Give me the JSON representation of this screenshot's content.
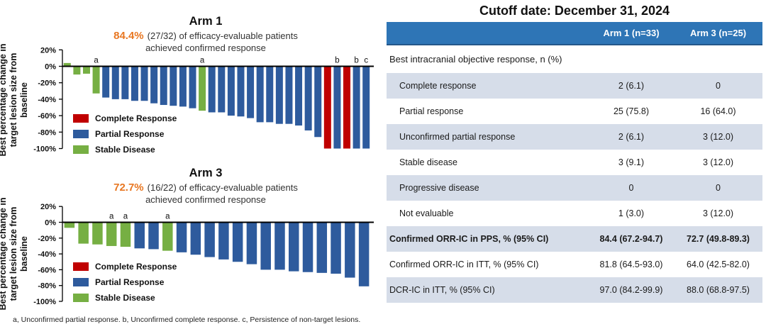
{
  "colors": {
    "cr": "#C00000",
    "pr": "#2E5B9D",
    "sd": "#76AF43",
    "accent_orange": "#E87722",
    "table_header_bg": "#2E75B6",
    "table_row_light": "#D6DDE9",
    "table_row_white": "#FFFFFF"
  },
  "footnote": "a, Unconfirmed partial response. b, Unconfirmed complete response. c, Persistence of non-target lesions.",
  "chart_data": [
    {
      "type": "bar",
      "variant": "waterfall",
      "title": "Arm 1",
      "headline_pct": "84.4%",
      "subtitle_line1": "(27/32) of efficacy-evaluable patients",
      "subtitle_line2": "achieved confirmed response",
      "ylabel_lines": [
        "Best percentage change in",
        "target lesion size from",
        "baseline"
      ],
      "ylabel": "Best percentage change in target lesion size from baseline",
      "ylim": [
        -100,
        20
      ],
      "grid": false,
      "ytick_values": [
        20,
        0,
        -20,
        -40,
        -60,
        -80,
        -100
      ],
      "ytick_labels": [
        "20%",
        "0%",
        "-20%",
        "-40%",
        "-60%",
        "-80%",
        "-100%"
      ],
      "legend_position": "inside-left",
      "legend": [
        {
          "label": "Complete Response",
          "color_key": "cr"
        },
        {
          "label": "Partial Response",
          "color_key": "pr"
        },
        {
          "label": "Stable Disease",
          "color_key": "sd"
        }
      ],
      "bars": [
        {
          "value": 4,
          "color_key": "sd"
        },
        {
          "value": -10,
          "color_key": "sd"
        },
        {
          "value": -9,
          "color_key": "sd"
        },
        {
          "value": -33,
          "color_key": "sd",
          "note": "a"
        },
        {
          "value": -38,
          "color_key": "pr"
        },
        {
          "value": -40,
          "color_key": "pr"
        },
        {
          "value": -40,
          "color_key": "pr"
        },
        {
          "value": -42,
          "color_key": "pr"
        },
        {
          "value": -42,
          "color_key": "pr"
        },
        {
          "value": -45,
          "color_key": "pr"
        },
        {
          "value": -47,
          "color_key": "pr"
        },
        {
          "value": -48,
          "color_key": "pr"
        },
        {
          "value": -49,
          "color_key": "pr"
        },
        {
          "value": -51,
          "color_key": "pr"
        },
        {
          "value": -54,
          "color_key": "sd",
          "note": "a"
        },
        {
          "value": -56,
          "color_key": "pr"
        },
        {
          "value": -56,
          "color_key": "pr"
        },
        {
          "value": -60,
          "color_key": "pr"
        },
        {
          "value": -61,
          "color_key": "pr"
        },
        {
          "value": -63,
          "color_key": "pr"
        },
        {
          "value": -68,
          "color_key": "pr"
        },
        {
          "value": -68,
          "color_key": "pr"
        },
        {
          "value": -70,
          "color_key": "pr"
        },
        {
          "value": -70,
          "color_key": "pr"
        },
        {
          "value": -72,
          "color_key": "pr"
        },
        {
          "value": -78,
          "color_key": "pr"
        },
        {
          "value": -86,
          "color_key": "pr"
        },
        {
          "value": -100,
          "color_key": "cr"
        },
        {
          "value": -100,
          "color_key": "pr",
          "note": "b"
        },
        {
          "value": -100,
          "color_key": "cr"
        },
        {
          "value": -100,
          "color_key": "pr",
          "note": "b"
        },
        {
          "value": -100,
          "color_key": "pr",
          "note": "c"
        }
      ]
    },
    {
      "type": "bar",
      "variant": "waterfall",
      "title": "Arm 3",
      "headline_pct": "72.7%",
      "subtitle_line1": "(16/22) of efficacy-evaluable patients",
      "subtitle_line2": "achieved confirmed response",
      "ylabel_lines": [
        "Best percentage change in",
        "target lesion size from",
        "baseline"
      ],
      "ylabel": "Best percentage change in target lesion size from baseline",
      "ylim": [
        -100,
        20
      ],
      "grid": false,
      "ytick_values": [
        20,
        0,
        -20,
        -40,
        -60,
        -80,
        -100
      ],
      "ytick_labels": [
        "20%",
        "0%",
        "-20%",
        "-40%",
        "-60%",
        "-80%",
        "-100%"
      ],
      "legend_position": "inside-left",
      "legend": [
        {
          "label": "Complete Response",
          "color_key": "cr"
        },
        {
          "label": "Partial Response",
          "color_key": "pr"
        },
        {
          "label": "Stable Disease",
          "color_key": "sd"
        }
      ],
      "bars": [
        {
          "value": -7,
          "color_key": "sd"
        },
        {
          "value": -27,
          "color_key": "sd"
        },
        {
          "value": -28,
          "color_key": "sd"
        },
        {
          "value": -30,
          "color_key": "sd",
          "note": "a"
        },
        {
          "value": -31,
          "color_key": "sd",
          "note": "a"
        },
        {
          "value": -33,
          "color_key": "pr"
        },
        {
          "value": -34,
          "color_key": "pr"
        },
        {
          "value": -36,
          "color_key": "sd",
          "note": "a"
        },
        {
          "value": -38,
          "color_key": "pr"
        },
        {
          "value": -41,
          "color_key": "pr"
        },
        {
          "value": -44,
          "color_key": "pr"
        },
        {
          "value": -47,
          "color_key": "pr"
        },
        {
          "value": -50,
          "color_key": "pr"
        },
        {
          "value": -53,
          "color_key": "pr"
        },
        {
          "value": -60,
          "color_key": "pr"
        },
        {
          "value": -60,
          "color_key": "pr"
        },
        {
          "value": -62,
          "color_key": "pr"
        },
        {
          "value": -63,
          "color_key": "pr"
        },
        {
          "value": -64,
          "color_key": "pr"
        },
        {
          "value": -65,
          "color_key": "pr"
        },
        {
          "value": -70,
          "color_key": "pr"
        },
        {
          "value": -81,
          "color_key": "pr"
        }
      ]
    }
  ],
  "table": {
    "title": "Cutoff date: December 31, 2024",
    "columns": [
      "",
      "Arm 1 (n=33)",
      "Arm 3 (n=25)"
    ],
    "rows": [
      {
        "label": "Best intracranial objective response, n (%)",
        "arm1": "",
        "arm3": ""
      },
      {
        "label": "Complete response",
        "arm1": "2 (6.1)",
        "arm3": "0"
      },
      {
        "label": "Partial response",
        "arm1": "25 (75.8)",
        "arm3": "16 (64.0)"
      },
      {
        "label": "Unconfirmed partial response",
        "arm1": "2 (6.1)",
        "arm3": "3 (12.0)"
      },
      {
        "label": "Stable disease",
        "arm1": "3 (9.1)",
        "arm3": "3 (12.0)"
      },
      {
        "label": "Progressive disease",
        "arm1": "0",
        "arm3": "0"
      },
      {
        "label": "Not evaluable",
        "arm1": "1 (3.0)",
        "arm3": "3 (12.0)"
      },
      {
        "label": "Confirmed ORR-IC in PPS, % (95% CI)",
        "arm1": "84.4 (67.2-94.7)",
        "arm3": "72.7 (49.8-89.3)"
      },
      {
        "label": "Confirmed ORR-IC in ITT, % (95% CI)",
        "arm1": "81.8 (64.5-93.0)",
        "arm3": "64.0 (42.5-82.0)"
      },
      {
        "label": "DCR-IC in ITT, % (95% CI)",
        "arm1": "97.0 (84.2-99.9)",
        "arm3": "88.0 (68.8-97.5)"
      }
    ]
  }
}
